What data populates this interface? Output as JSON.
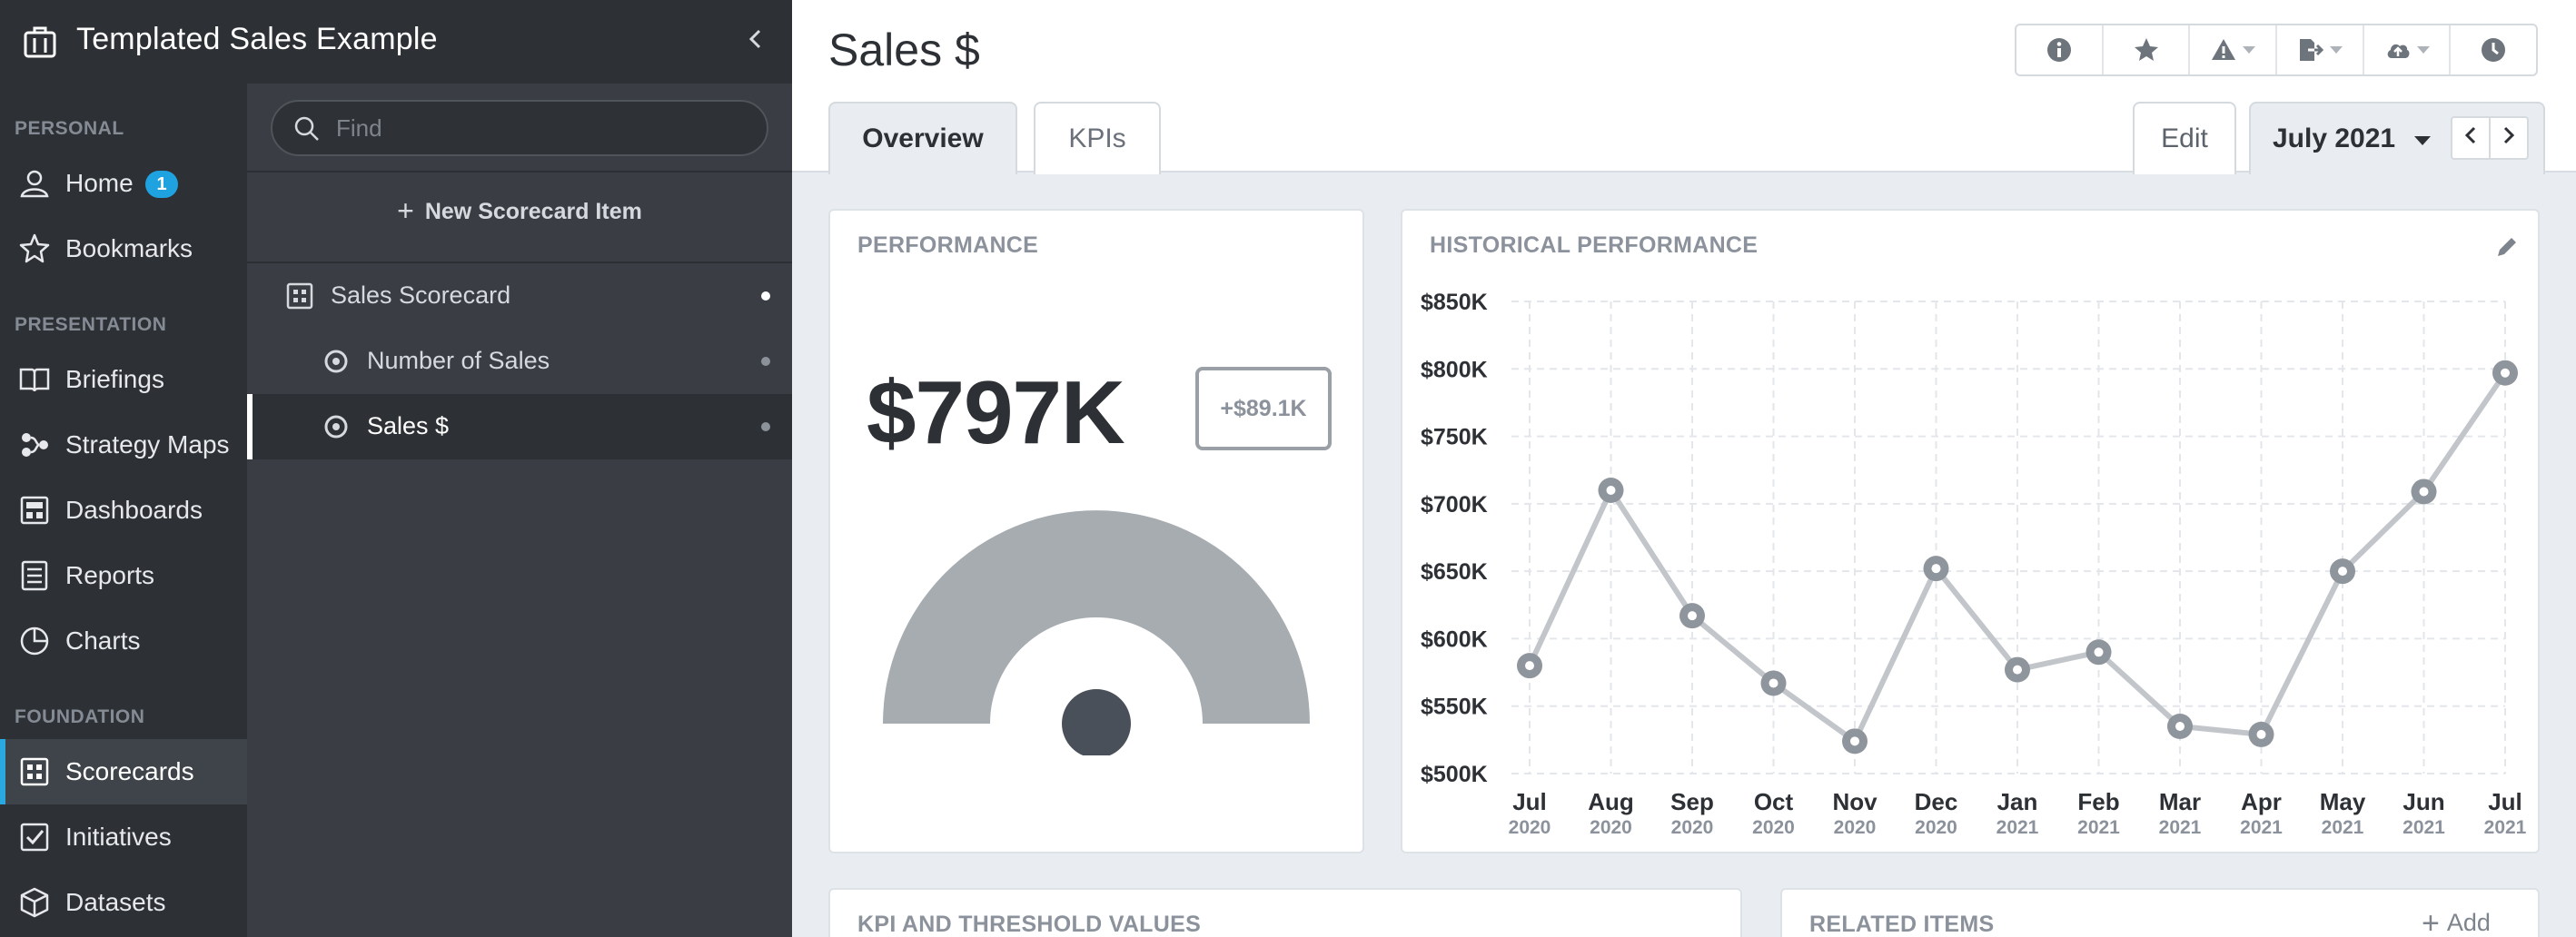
{
  "app": {
    "title": "Templated Sales Example"
  },
  "nav": {
    "sections": [
      {
        "label": "PERSONAL"
      },
      {
        "label": "PRESENTATION"
      },
      {
        "label": "FOUNDATION"
      }
    ],
    "items": [
      {
        "label": "Home",
        "icon": "user-icon",
        "badge": "1"
      },
      {
        "label": "Bookmarks",
        "icon": "star-icon"
      },
      {
        "label": "Briefings",
        "icon": "book-icon"
      },
      {
        "label": "Strategy Maps",
        "icon": "strategy-map-icon"
      },
      {
        "label": "Dashboards",
        "icon": "dashboard-icon"
      },
      {
        "label": "Reports",
        "icon": "report-icon"
      },
      {
        "label": "Charts",
        "icon": "pie-chart-icon"
      },
      {
        "label": "Scorecards",
        "icon": "scorecard-icon",
        "active": true
      },
      {
        "label": "Initiatives",
        "icon": "checkbox-icon"
      },
      {
        "label": "Datasets",
        "icon": "cube-icon"
      }
    ]
  },
  "tree": {
    "search_placeholder": "Find",
    "new_item_label": "New Scorecard Item",
    "rows": [
      {
        "label": "Sales Scorecard",
        "icon": "scorecard-icon"
      },
      {
        "label": "Number of Sales",
        "icon": "metric-icon"
      },
      {
        "label": "Sales $",
        "icon": "metric-icon",
        "active": true
      }
    ]
  },
  "header": {
    "title": "Sales $",
    "tabs": [
      {
        "label": "Overview"
      },
      {
        "label": "KPIs"
      }
    ],
    "edit_label": "Edit",
    "period_label": "July 2021",
    "toolbar_icons": [
      "info-icon",
      "star-icon",
      "warning-icon",
      "export-icon",
      "cloud-upload-icon",
      "history-icon"
    ]
  },
  "performance": {
    "title": "PERFORMANCE",
    "value": "$797K",
    "delta": "+$89.1K",
    "gauge_level": 0.5
  },
  "history": {
    "title": "HISTORICAL PERFORMANCE"
  },
  "bottom": {
    "kpi_title": "KPI AND THRESHOLD VALUES",
    "related_title": "RELATED ITEMS",
    "add_label": "Add"
  },
  "colors": {
    "accent": "#29a9e0",
    "line": "#c2c6ca",
    "marker": "#8f959c",
    "gauge": "#a7acb1"
  },
  "chart_data": {
    "type": "line",
    "x": [
      "Jul",
      "Aug",
      "Sep",
      "Oct",
      "Nov",
      "Dec",
      "Jan",
      "Feb",
      "Mar",
      "Apr",
      "May",
      "Jun",
      "Jul"
    ],
    "x_years": [
      "2020",
      "2020",
      "2020",
      "2020",
      "2020",
      "2020",
      "2021",
      "2021",
      "2021",
      "2021",
      "2021",
      "2021",
      "2021"
    ],
    "series": [
      {
        "values": [
          580,
          710,
          617,
          567,
          524,
          652,
          577,
          590,
          535,
          529,
          650,
          709,
          797
        ]
      }
    ],
    "yticks": [
      "$500K",
      "$550K",
      "$600K",
      "$650K",
      "$700K",
      "$750K",
      "$800K",
      "$850K"
    ],
    "ylim": [
      500,
      850
    ],
    "y_unit": "thousands of dollars",
    "grid": true
  }
}
